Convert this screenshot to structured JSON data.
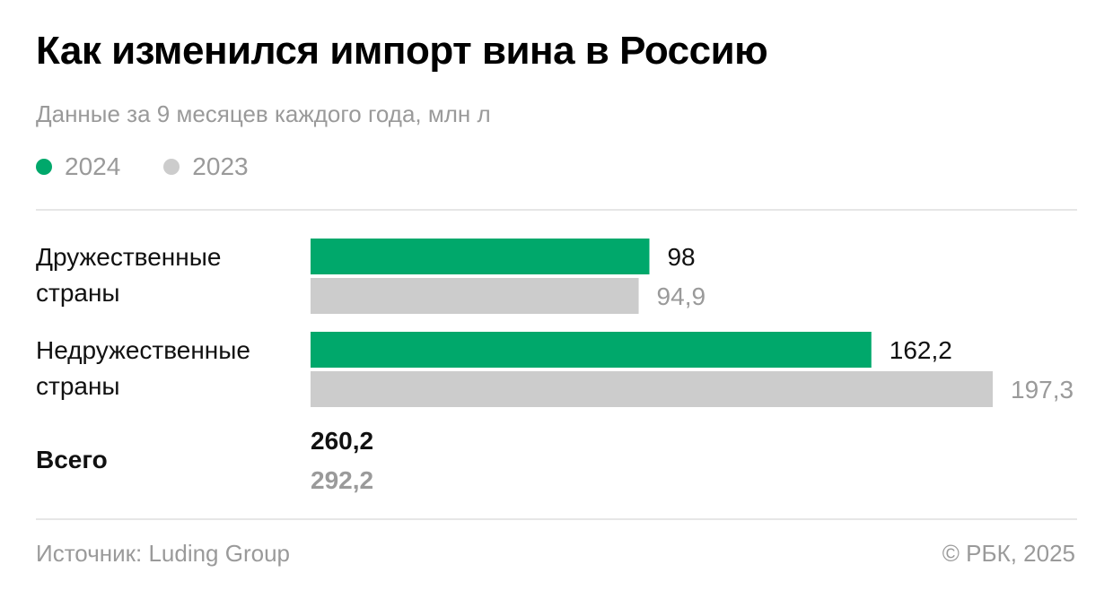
{
  "title": "Как изменился импорт вина в Россию",
  "subtitle": "Данные за 9 месяцев каждого года, млн л",
  "colors": {
    "y2024": "#00a86b",
    "y2023": "#cccccc",
    "value2023_text": "#9a9a9a",
    "value2024_text": "#111111"
  },
  "legend": [
    {
      "label": "2024",
      "color": "#00a86b"
    },
    {
      "label": "2023",
      "color": "#cccccc"
    }
  ],
  "chart_data": {
    "type": "bar",
    "orientation": "horizontal",
    "categories": [
      "Дружественные страны",
      "Недружественные страны"
    ],
    "category_lines": [
      [
        "Дружественные",
        "страны"
      ],
      [
        "Недружественные",
        "страны"
      ]
    ],
    "series": [
      {
        "name": "2024",
        "values": [
          98,
          162.2
        ],
        "labels": [
          "98",
          "162,2"
        ]
      },
      {
        "name": "2023",
        "values": [
          94.9,
          197.3
        ],
        "labels": [
          "94,9",
          "197,3"
        ]
      }
    ],
    "total": {
      "label": "Всего",
      "values": [
        260.2,
        292.2
      ],
      "labels": [
        "260,2",
        "292,2"
      ]
    },
    "xlim": [
      0,
      197.3
    ],
    "grid": false,
    "legend_position": "top-left"
  },
  "footer": {
    "source": "Источник: Luding Group",
    "credit": "© РБК, 2025"
  }
}
